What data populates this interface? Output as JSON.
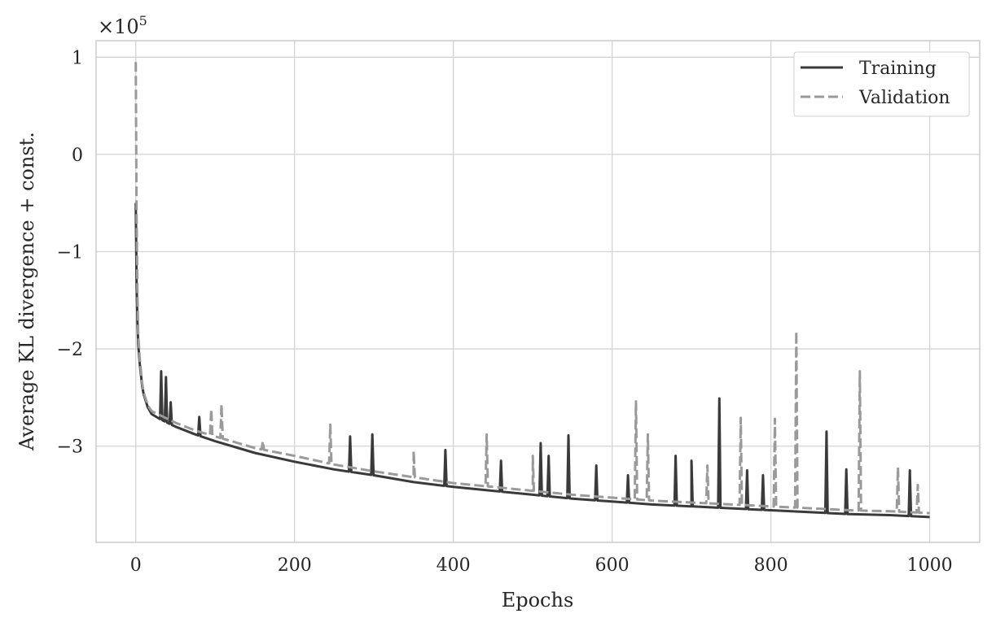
{
  "chart_data": {
    "type": "line",
    "title": "",
    "xlabel": "Epochs",
    "ylabel": "Average KL divergence + const.",
    "y_multiplier_label": "×10^5",
    "y_multiplier_base": "×10",
    "y_multiplier_exp": "5",
    "xlim": [
      -50,
      1063
    ],
    "ylim": [
      -3.99,
      1.17
    ],
    "y_unit_scale": 100000,
    "xticks": [
      0,
      200,
      400,
      600,
      800,
      1000
    ],
    "xtick_labels": [
      "0",
      "200",
      "400",
      "600",
      "800",
      "1000"
    ],
    "yticks": [
      1,
      0,
      -1,
      -2,
      -3
    ],
    "ytick_labels": [
      "1",
      "0",
      "−1",
      "−2",
      "−3"
    ],
    "grid": true,
    "legend_placement": "top-right",
    "colors": {
      "training": "#3a3a3a",
      "validation": "#9a9a9a",
      "grid": "#d4d4d4",
      "frame": "#cccccc"
    },
    "series": [
      {
        "name": "Training",
        "style": "solid",
        "x": [
          0,
          1,
          2,
          3,
          5,
          8,
          10,
          15,
          20,
          30,
          50,
          75,
          100,
          150,
          200,
          250,
          300,
          350,
          400,
          450,
          500,
          550,
          600,
          650,
          700,
          750,
          800,
          850,
          900,
          950,
          1000
        ],
        "y": [
          -0.5,
          -1.3,
          -1.7,
          -1.95,
          -2.15,
          -2.38,
          -2.47,
          -2.6,
          -2.67,
          -2.72,
          -2.8,
          -2.88,
          -2.95,
          -3.07,
          -3.16,
          -3.24,
          -3.3,
          -3.37,
          -3.42,
          -3.46,
          -3.5,
          -3.54,
          -3.57,
          -3.6,
          -3.62,
          -3.64,
          -3.66,
          -3.68,
          -3.7,
          -3.71,
          -3.73
        ],
        "spikes": [
          [
            32,
            -2.23
          ],
          [
            38,
            -2.29
          ],
          [
            44,
            -2.55
          ],
          [
            80,
            -2.7
          ],
          [
            270,
            -2.9
          ],
          [
            298,
            -2.88
          ],
          [
            390,
            -3.04
          ],
          [
            460,
            -3.15
          ],
          [
            510,
            -2.97
          ],
          [
            520,
            -3.1
          ],
          [
            545,
            -2.89
          ],
          [
            580,
            -3.2
          ],
          [
            620,
            -3.3
          ],
          [
            680,
            -3.1
          ],
          [
            700,
            -3.15
          ],
          [
            735,
            -2.51
          ],
          [
            770,
            -3.25
          ],
          [
            790,
            -3.3
          ],
          [
            870,
            -2.85
          ],
          [
            895,
            -3.24
          ],
          [
            975,
            -3.25
          ]
        ]
      },
      {
        "name": "Validation",
        "style": "dashed",
        "x": [
          0,
          1,
          2,
          3,
          5,
          8,
          10,
          15,
          20,
          30,
          50,
          75,
          100,
          150,
          200,
          250,
          300,
          350,
          400,
          450,
          500,
          550,
          600,
          650,
          700,
          750,
          800,
          850,
          900,
          950,
          1000
        ],
        "y": [
          0.95,
          -0.6,
          -1.4,
          -1.85,
          -2.1,
          -2.35,
          -2.45,
          -2.58,
          -2.64,
          -2.68,
          -2.76,
          -2.84,
          -2.9,
          -3.02,
          -3.1,
          -3.19,
          -3.26,
          -3.32,
          -3.38,
          -3.42,
          -3.46,
          -3.5,
          -3.53,
          -3.56,
          -3.58,
          -3.6,
          -3.62,
          -3.64,
          -3.66,
          -3.67,
          -3.69
        ],
        "spikes": [
          [
            95,
            -2.62
          ],
          [
            108,
            -2.57
          ],
          [
            160,
            -2.95
          ],
          [
            245,
            -2.78
          ],
          [
            350,
            -3.05
          ],
          [
            442,
            -2.88
          ],
          [
            500,
            -3.1
          ],
          [
            630,
            -2.54
          ],
          [
            645,
            -2.88
          ],
          [
            720,
            -3.2
          ],
          [
            762,
            -2.71
          ],
          [
            805,
            -2.72
          ],
          [
            832,
            -1.82
          ],
          [
            912,
            -2.23
          ],
          [
            960,
            -3.22
          ],
          [
            985,
            -3.4
          ]
        ]
      }
    ]
  }
}
